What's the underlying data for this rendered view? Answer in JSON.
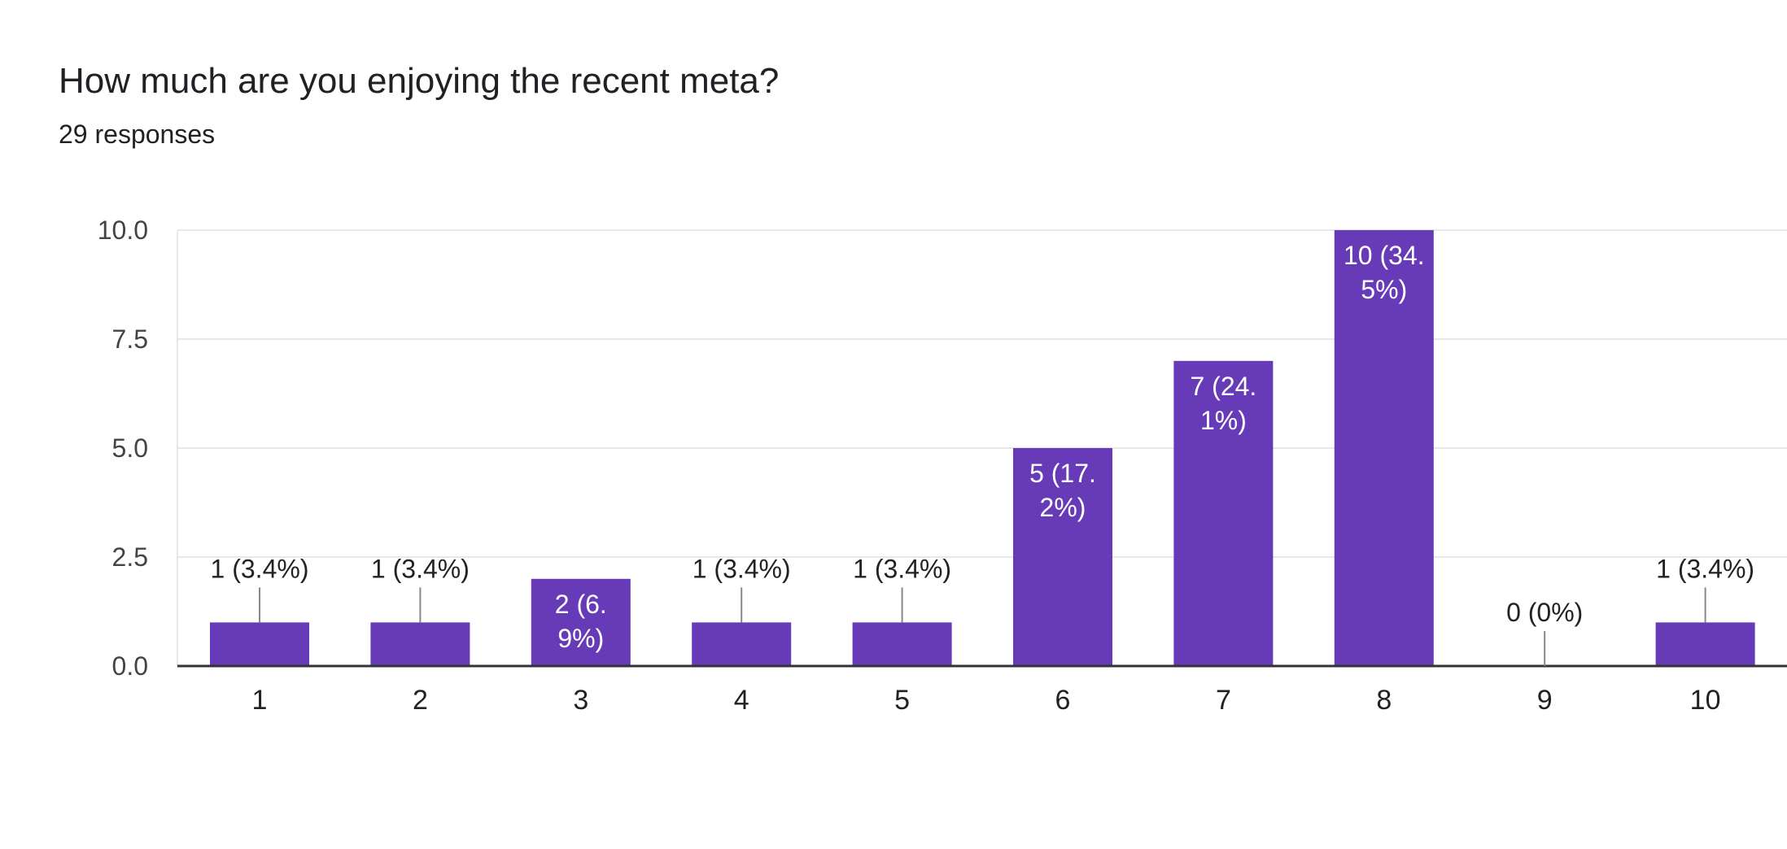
{
  "header": {
    "title": "How much are you enjoying the recent meta?",
    "subtitle": "29 responses"
  },
  "colors": {
    "bar": "#673AB7",
    "grid": "#E8E8E8",
    "axis": "#333333",
    "leader": "#888888",
    "label_inside": "#FFFFFF",
    "label_outside": "#222222"
  },
  "chart_data": {
    "type": "bar",
    "categories": [
      "1",
      "2",
      "3",
      "4",
      "5",
      "6",
      "7",
      "8",
      "9",
      "10"
    ],
    "values": [
      1,
      1,
      2,
      1,
      1,
      5,
      7,
      10,
      0,
      1
    ],
    "data_labels": [
      [
        "1 (3.4%)"
      ],
      [
        "1 (3.4%)"
      ],
      [
        "2 (6.",
        "9%)"
      ],
      [
        "1 (3.4%)"
      ],
      [
        "1 (3.4%)"
      ],
      [
        "5 (17.",
        "2%)"
      ],
      [
        "7 (24.",
        "1%)"
      ],
      [
        "10 (34.",
        "5%)"
      ],
      [
        "0 (0%)"
      ],
      [
        "1 (3.4%)"
      ]
    ],
    "yticks": [
      "0.0",
      "2.5",
      "5.0",
      "7.5",
      "10.0"
    ],
    "ylim": [
      0,
      10
    ],
    "grid": true,
    "legend": "none"
  }
}
